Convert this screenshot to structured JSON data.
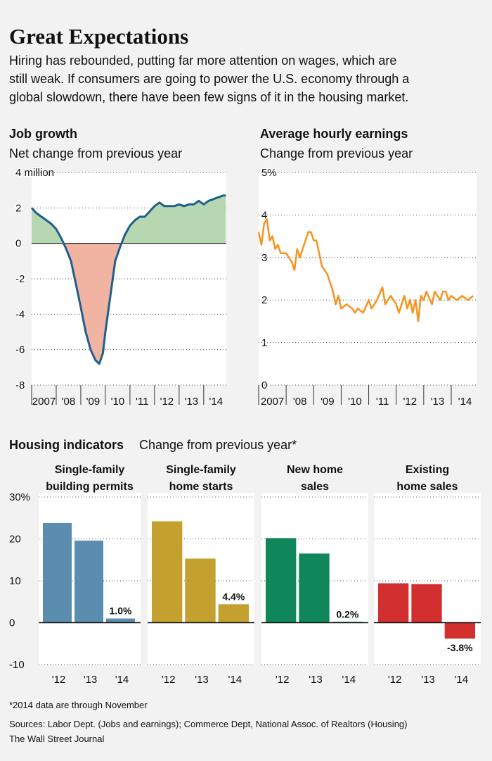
{
  "header": {
    "title": "Great Expectations",
    "subtitle_lines": [
      "Hiring has rebounded, putting far more attention on wages, which are",
      "still weak. If consumers are going to power the U.S. economy through a",
      "global slowdown, there have been few signs of it in the housing market."
    ]
  },
  "section": {
    "title": "Housing indicators",
    "subtitle": "Change from previous year*"
  },
  "chart_data": [
    {
      "type": "area",
      "title": "Job growth",
      "subtitle": "Net change from previous year",
      "x": [
        2007.0,
        2007.2,
        2007.4,
        2007.6,
        2007.8,
        2008.0,
        2008.2,
        2008.4,
        2008.6,
        2008.8,
        2009.0,
        2009.2,
        2009.4,
        2009.6,
        2009.75,
        2009.9,
        2010.0,
        2010.2,
        2010.4,
        2010.6,
        2010.8,
        2011.0,
        2011.2,
        2011.4,
        2011.6,
        2011.8,
        2012.0,
        2012.2,
        2012.4,
        2012.6,
        2012.8,
        2013.0,
        2013.2,
        2013.4,
        2013.6,
        2013.8,
        2014.0,
        2014.2,
        2014.4,
        2014.6,
        2014.8,
        2014.9
      ],
      "values": [
        2.0,
        1.7,
        1.5,
        1.3,
        1.1,
        0.8,
        0.3,
        -0.3,
        -1.0,
        -2.3,
        -3.6,
        -5.0,
        -6.0,
        -6.6,
        -6.8,
        -6.2,
        -5.0,
        -3.0,
        -1.0,
        -0.2,
        0.5,
        1.0,
        1.3,
        1.5,
        1.5,
        1.8,
        2.1,
        2.3,
        2.1,
        2.1,
        2.1,
        2.2,
        2.1,
        2.2,
        2.2,
        2.4,
        2.2,
        2.4,
        2.5,
        2.6,
        2.7,
        2.7
      ],
      "color": "#1e5f8c",
      "fill_positive": "#b7d7b1",
      "fill_negative": "#f2b4a2",
      "xlim": [
        2007,
        2014.92
      ],
      "xticks": [
        {
          "value": 2007,
          "label": "2007"
        },
        {
          "value": 2008,
          "label": "'08"
        },
        {
          "value": 2009,
          "label": "'09"
        },
        {
          "value": 2010,
          "label": "'10"
        },
        {
          "value": 2011,
          "label": "'11"
        },
        {
          "value": 2012,
          "label": "'12"
        },
        {
          "value": 2013,
          "label": "'13"
        },
        {
          "value": 2014,
          "label": "'14"
        }
      ],
      "ylim": [
        -8,
        4
      ],
      "yticks": [
        {
          "value": 4,
          "label": "4 million"
        },
        2,
        0,
        -2,
        -4,
        -6,
        -8
      ],
      "grid": true
    },
    {
      "type": "line",
      "title": "Average hourly earnings",
      "subtitle": "Change from previous year",
      "x": [
        2007.0,
        2007.1,
        2007.2,
        2007.3,
        2007.4,
        2007.5,
        2007.6,
        2007.7,
        2007.8,
        2008.0,
        2008.2,
        2008.3,
        2008.4,
        2008.5,
        2008.6,
        2008.8,
        2008.9,
        2009.0,
        2009.1,
        2009.3,
        2009.5,
        2009.6,
        2009.7,
        2009.8,
        2009.9,
        2010.0,
        2010.2,
        2010.4,
        2010.5,
        2010.6,
        2010.8,
        2011.0,
        2011.1,
        2011.3,
        2011.5,
        2011.6,
        2011.8,
        2012.0,
        2012.1,
        2012.3,
        2012.4,
        2012.5,
        2012.6,
        2012.7,
        2012.8,
        2012.9,
        2013.0,
        2013.1,
        2013.3,
        2013.4,
        2013.6,
        2013.7,
        2013.8,
        2013.9,
        2014.0,
        2014.2,
        2014.4,
        2014.6,
        2014.8
      ],
      "values": [
        3.6,
        3.3,
        3.8,
        3.9,
        3.4,
        3.5,
        3.2,
        3.3,
        3.1,
        3.1,
        2.9,
        2.7,
        3.2,
        3.0,
        3.2,
        3.6,
        3.6,
        3.4,
        3.4,
        2.8,
        2.6,
        2.4,
        2.2,
        1.9,
        2.1,
        1.8,
        1.9,
        1.8,
        1.7,
        1.8,
        1.7,
        2.0,
        1.8,
        2.0,
        2.3,
        1.9,
        2.1,
        1.9,
        1.7,
        2.1,
        1.8,
        2.0,
        1.7,
        2.0,
        1.5,
        2.1,
        2.0,
        2.2,
        1.9,
        2.2,
        2.0,
        2.2,
        2.2,
        2.0,
        2.1,
        2.0,
        2.1,
        2.0,
        2.1
      ],
      "color": "#f7931e",
      "xlim": [
        2007,
        2014.92
      ],
      "xticks": [
        {
          "value": 2007,
          "label": "2007"
        },
        {
          "value": 2008,
          "label": "'08"
        },
        {
          "value": 2009,
          "label": "'09"
        },
        {
          "value": 2010,
          "label": "'10"
        },
        {
          "value": 2011,
          "label": "'11"
        },
        {
          "value": 2012,
          "label": "'12"
        },
        {
          "value": 2013,
          "label": "'13"
        },
        {
          "value": 2014,
          "label": "'14"
        }
      ],
      "ylim": [
        0,
        5
      ],
      "yticks": [
        {
          "value": 5,
          "label": "5%"
        },
        4,
        3,
        2,
        1,
        0
      ],
      "grid": true
    },
    {
      "type": "bar",
      "title": [
        "Single-family",
        "building permits"
      ],
      "categories": [
        "'12",
        "'13",
        "'14"
      ],
      "values": [
        23.8,
        19.6,
        1.0
      ],
      "value_labels": [
        null,
        null,
        "1.0%"
      ],
      "color": "#5b8db1",
      "ylim": [
        -10,
        30
      ],
      "yticks": [
        {
          "value": 30,
          "label": "30%"
        },
        20,
        10,
        0,
        -10
      ],
      "grid": true
    },
    {
      "type": "bar",
      "title": [
        "Single-family",
        "home starts"
      ],
      "categories": [
        "'12",
        "'13",
        "'14"
      ],
      "values": [
        24.2,
        15.3,
        4.4
      ],
      "value_labels": [
        null,
        null,
        "4.4%"
      ],
      "color": "#c4a02f",
      "ylim": [
        -10,
        30
      ],
      "grid": true
    },
    {
      "type": "bar",
      "title": [
        "New home",
        "sales"
      ],
      "categories": [
        "'12",
        "'13",
        "'14"
      ],
      "values": [
        20.2,
        16.5,
        0.2
      ],
      "value_labels": [
        null,
        null,
        "0.2%"
      ],
      "color": "#0f875a",
      "ylim": [
        -10,
        30
      ],
      "grid": true
    },
    {
      "type": "bar",
      "title": [
        "Existing",
        "home sales"
      ],
      "categories": [
        "'12",
        "'13",
        "'14"
      ],
      "values": [
        9.4,
        9.2,
        -3.8
      ],
      "value_labels": [
        null,
        null,
        "-3.8%"
      ],
      "color": "#d32f2f",
      "ylim": [
        -10,
        30
      ],
      "grid": true
    }
  ],
  "footer": {
    "note": "*2014 data are through November",
    "sources": "Sources: Labor Dept. (Jobs and earnings); Commerce Dept, National Assoc. of Realtors (Housing)",
    "credit": "The Wall Street Journal"
  }
}
